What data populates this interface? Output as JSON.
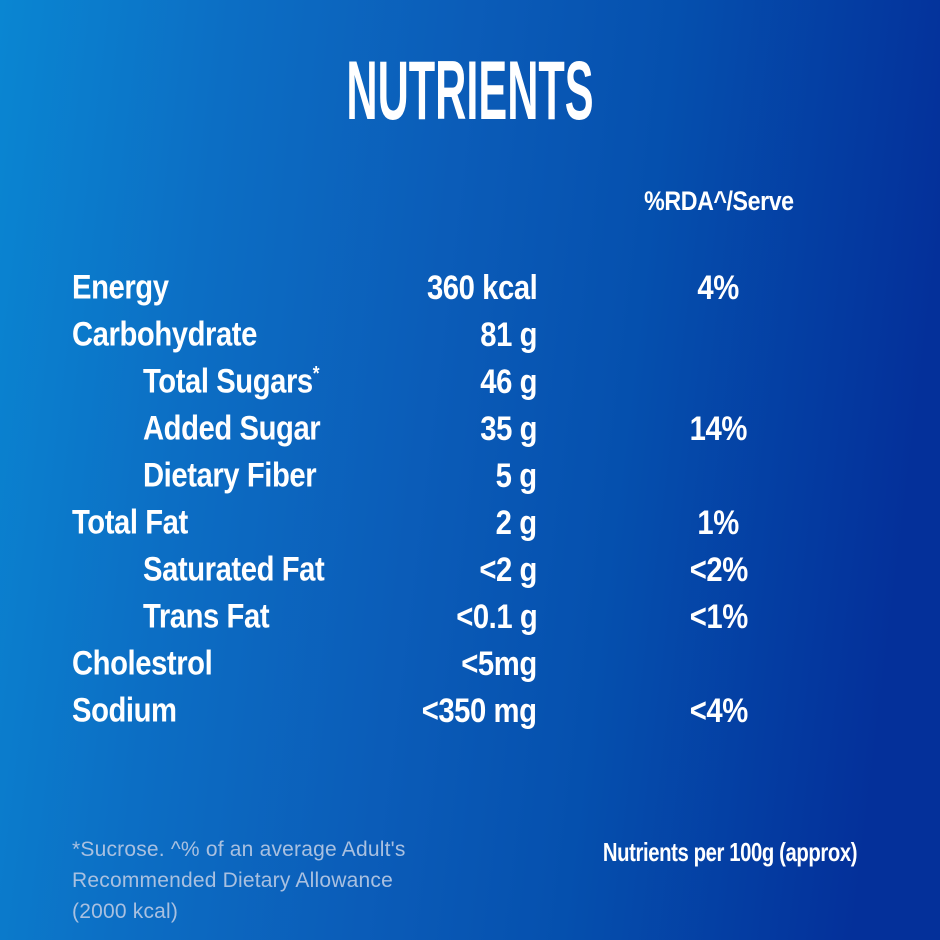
{
  "title": "NUTRIENTS",
  "table": {
    "rda_header": "%RDA^/Serve",
    "rows": [
      {
        "label": "Energy",
        "sup": "",
        "value": "360 kcal",
        "rda": "4%"
      },
      {
        "label": "Carbohydrate",
        "sup": "",
        "value": "81 g",
        "rda": ""
      },
      {
        "label": "Total Sugars",
        "sup": "*",
        "value": "46 g",
        "rda": ""
      },
      {
        "label": "Added Sugar",
        "sup": "",
        "value": "35 g",
        "rda": "14%"
      },
      {
        "label": "Dietary Fiber",
        "sup": "",
        "value": "5 g",
        "rda": ""
      },
      {
        "label": "Total Fat",
        "sup": "",
        "value": "2 g",
        "rda": "1%"
      },
      {
        "label": "Saturated Fat",
        "sup": "",
        "value": "<2 g",
        "rda": "<2%"
      },
      {
        "label": "Trans Fat",
        "sup": "",
        "value": "<0.1 g",
        "rda": "<1%"
      },
      {
        "label": "Cholestrol",
        "sup": "",
        "value": "<5mg",
        "rda": ""
      },
      {
        "label": "Sodium",
        "sup": "",
        "value": "<350 mg",
        "rda": "<4%"
      }
    ]
  },
  "footnote": {
    "line1": "*Sucrose. ^% of an average Adult's",
    "line2": "Recommended Dietary Allowance",
    "line3": "(2000 kcal)"
  },
  "footer_right": "Nutrients per 100g (approx)",
  "colors": {
    "background_left": "#0a86d2",
    "background_right": "#04309a",
    "text": "#ffffff",
    "footnote_text": "#a9c0e0"
  }
}
